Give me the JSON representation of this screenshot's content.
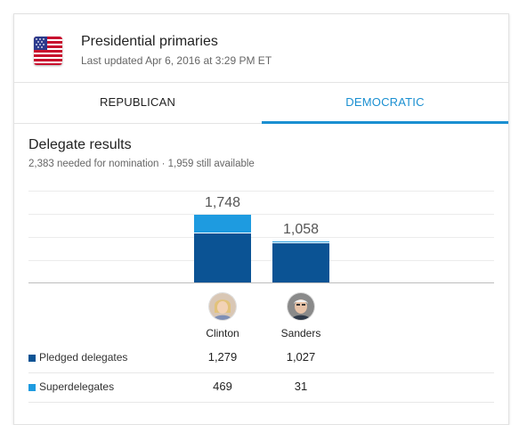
{
  "header": {
    "flag_icon": "us-flag-icon",
    "title": "Presidential primaries",
    "subtitle": "Last updated Apr 6, 2016 at 3:29 PM ET"
  },
  "tabs": [
    {
      "label": "REPUBLICAN",
      "selected": false
    },
    {
      "label": "DEMOCRATIC",
      "selected": true
    }
  ],
  "colors": {
    "accent": "#1a8fd1",
    "pledged": "#0b5394",
    "super": "#1e9be0"
  },
  "results": {
    "title": "Delegate results",
    "subtitle": "2,383 needed for nomination · 1,959 still available"
  },
  "chart_data": {
    "type": "bar",
    "stacked": true,
    "categories": [
      "Clinton",
      "Sanders"
    ],
    "series": [
      {
        "name": "Pledged delegates",
        "values": [
          1279,
          1027
        ]
      },
      {
        "name": "Superdelegates",
        "values": [
          469,
          31
        ]
      }
    ],
    "totals": [
      "1,748",
      "1,058"
    ],
    "ymax": 2383
  },
  "candidates": [
    {
      "name": "Clinton",
      "avatar_icon": "clinton-avatar-icon",
      "pledged": "1,279",
      "super": "469"
    },
    {
      "name": "Sanders",
      "avatar_icon": "sanders-avatar-icon",
      "pledged": "1,027",
      "super": "31"
    }
  ],
  "legend": {
    "pledged_label": "Pledged delegates",
    "super_label": "Superdelegates"
  }
}
